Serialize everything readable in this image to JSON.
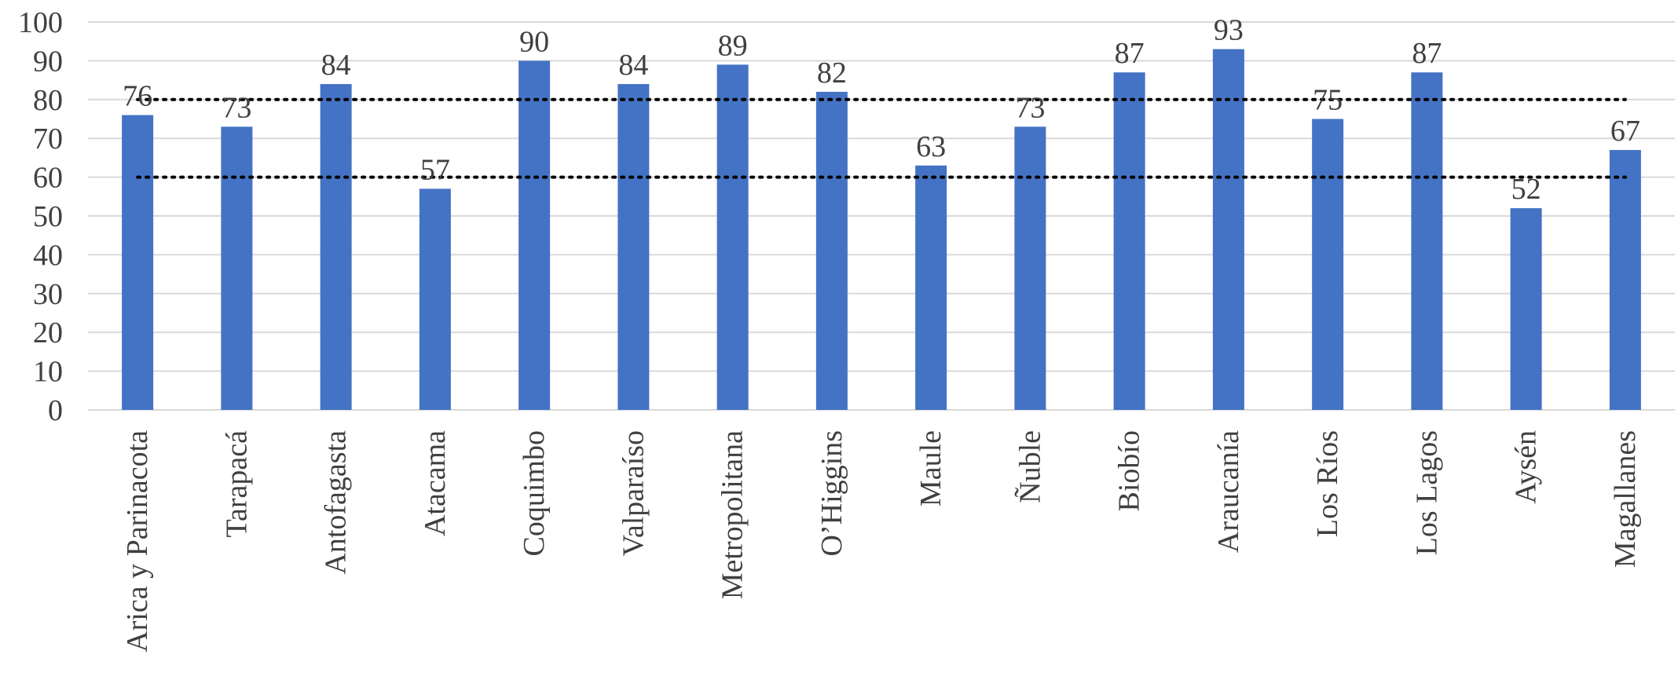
{
  "chart_data": {
    "type": "bar",
    "title": "",
    "xlabel": "",
    "ylabel": "",
    "ylim": [
      0,
      100
    ],
    "yticks": [
      0,
      10,
      20,
      30,
      40,
      50,
      60,
      70,
      80,
      90,
      100
    ],
    "grid": true,
    "categories": [
      "Arica y Parinacota",
      "Tarapacá",
      "Antofagasta",
      "Atacama",
      "Coquimbo",
      "Valparaíso",
      "Metropolitana",
      "O’Higgins",
      "Maule",
      "Ñuble",
      "Biobío",
      "Araucanía",
      "Los Ríos",
      "Los Lagos",
      "Aysén",
      "Magallanes"
    ],
    "values": [
      76,
      73,
      84,
      57,
      90,
      84,
      89,
      82,
      63,
      73,
      87,
      93,
      75,
      87,
      52,
      67
    ],
    "data_labels": [
      "76",
      "73",
      "84",
      "57",
      "90",
      "84",
      "89",
      "82",
      "63",
      "73",
      "87",
      "93",
      "75",
      "87",
      "52",
      "67"
    ],
    "reference_lines": [
      80,
      60
    ],
    "colors": {
      "bar": "#4472c4",
      "grid": "#d9d9d9",
      "reference": "#000000",
      "text": "#404040"
    }
  }
}
